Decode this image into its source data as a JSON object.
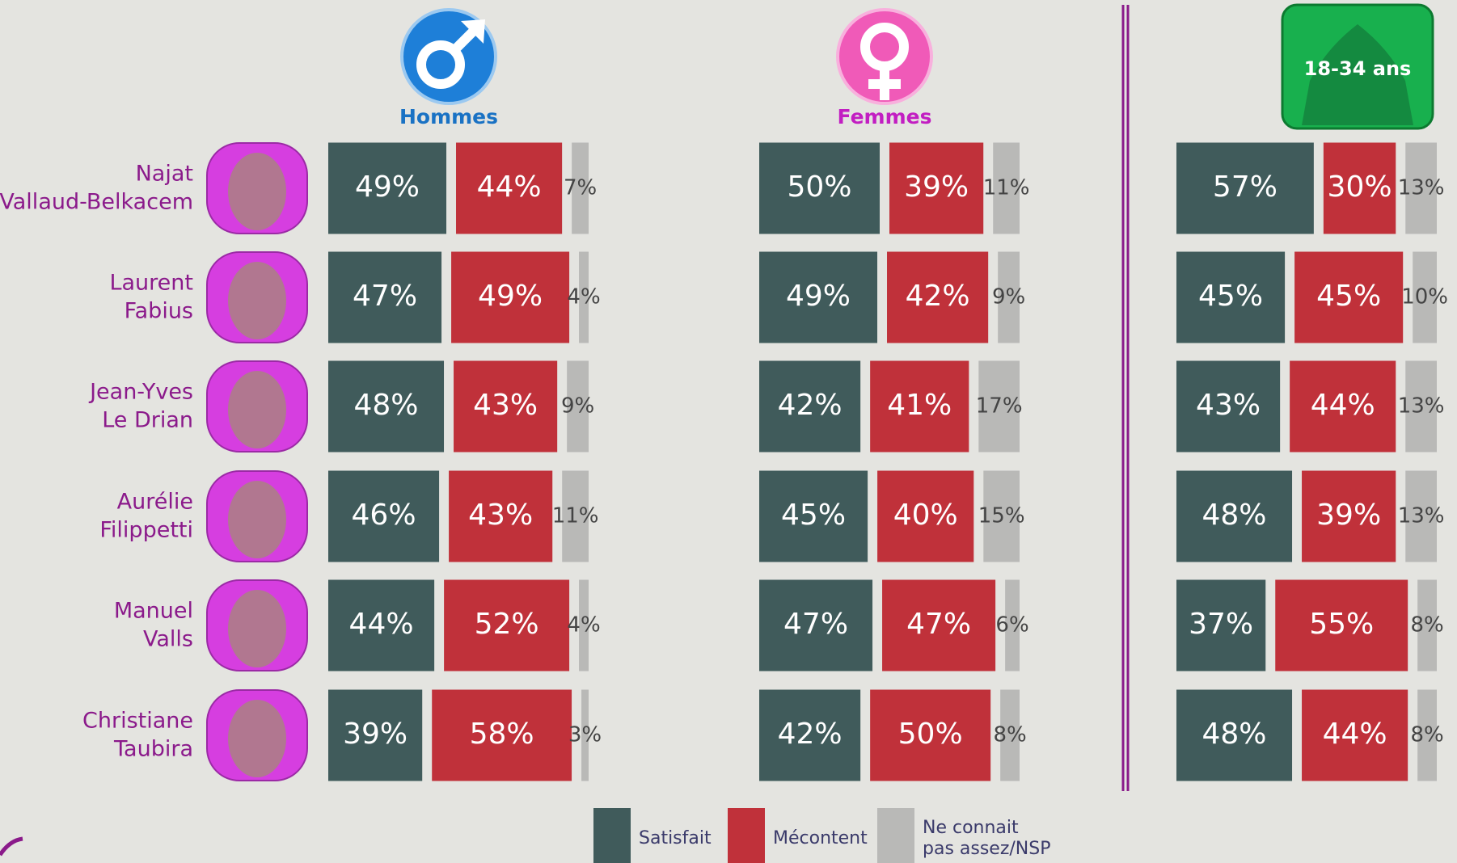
{
  "categories": [
    [
      "Najat",
      "Vallaud-Belkacem"
    ],
    [
      "Laurent",
      "Fabius"
    ],
    [
      "Jean-Yves",
      "Le Drian"
    ],
    [
      "Aurélie",
      "Filippetti"
    ],
    [
      "Manuel",
      "Valls"
    ],
    [
      "Christiane",
      "Taubira"
    ]
  ],
  "legend": [
    {
      "name": [
        "Satisfait"
      ],
      "color": "#405b5b"
    },
    {
      "name": [
        "Mécontent"
      ],
      "color": "#c0313a"
    },
    {
      "name": [
        "Ne connait",
        "pas assez/NSP"
      ],
      "color": "#b9b9b7"
    }
  ],
  "chart_data": [
    {
      "type": "bar",
      "stacked": true,
      "orientation": "horizontal",
      "title": "Hommes",
      "title_color": "#1a72c4",
      "series": [
        {
          "values": [
            49,
            47,
            48,
            46,
            44,
            39
          ],
          "value_labels": [
            "49%",
            "47%",
            "48%",
            "46%",
            "44%",
            "39%"
          ]
        },
        {
          "values": [
            44,
            49,
            43,
            43,
            52,
            58
          ],
          "value_labels": [
            "44%",
            "49%",
            "43%",
            "43%",
            "52%",
            "58%"
          ]
        },
        {
          "values": [
            7,
            4,
            9,
            11,
            4,
            3
          ],
          "value_labels": [
            "7%",
            "4%",
            "9%",
            "11%",
            "4%",
            "3%"
          ]
        }
      ]
    },
    {
      "type": "bar",
      "stacked": true,
      "orientation": "horizontal",
      "title": "Femmes",
      "title_color": "#c21ec2",
      "series": [
        {
          "values": [
            50,
            49,
            42,
            45,
            47,
            42
          ],
          "value_labels": [
            "50%",
            "49%",
            "42%",
            "45%",
            "47%",
            "42%"
          ]
        },
        {
          "values": [
            39,
            42,
            41,
            40,
            47,
            50
          ],
          "value_labels": [
            "39%",
            "42%",
            "41%",
            "40%",
            "47%",
            "50%"
          ]
        },
        {
          "values": [
            11,
            9,
            17,
            15,
            6,
            8
          ],
          "value_labels": [
            "11%",
            "9%",
            "17%",
            "15%",
            "6%",
            "8%"
          ]
        }
      ]
    },
    {
      "type": "bar",
      "stacked": true,
      "orientation": "horizontal",
      "title": "18-34 ans",
      "title_color": "#ffffff",
      "series": [
        {
          "values": [
            57,
            45,
            43,
            48,
            37,
            48
          ],
          "value_labels": [
            "57%",
            "45%",
            "43%",
            "48%",
            "37%",
            "48%"
          ]
        },
        {
          "values": [
            30,
            45,
            44,
            39,
            55,
            44
          ],
          "value_labels": [
            "30%",
            "45%",
            "44%",
            "39%",
            "55%",
            "44%"
          ]
        },
        {
          "values": [
            13,
            10,
            13,
            13,
            8,
            8
          ],
          "value_labels": [
            "13%",
            "10%",
            "13%",
            "13%",
            "8%",
            "8%"
          ]
        }
      ]
    }
  ]
}
